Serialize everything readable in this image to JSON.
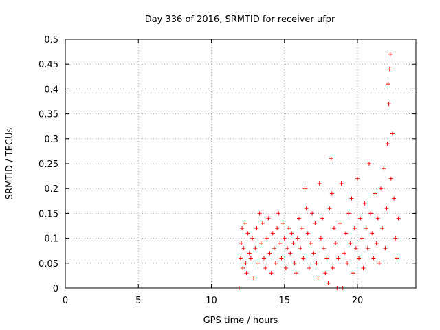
{
  "chart_data": {
    "type": "scatter",
    "title": "Day 336 of 2016, SRMTID for receiver ufpr",
    "xlabel": "GPS time / hours",
    "ylabel": "SRMTID / TECUs",
    "xlim": [
      0,
      24
    ],
    "ylim": [
      0,
      0.5
    ],
    "x_ticks": [
      0,
      5,
      10,
      15,
      20
    ],
    "y_ticks": [
      0,
      0.05,
      0.1,
      0.15,
      0.2,
      0.25,
      0.3,
      0.35,
      0.4,
      0.45,
      0.5
    ],
    "x_tick_labels": [
      "0",
      "5",
      "10",
      "15",
      "20"
    ],
    "y_tick_labels": [
      "0",
      "0.05",
      "0.1",
      "0.15",
      "0.2",
      "0.25",
      "0.3",
      "0.35",
      "0.4",
      "0.45",
      "0.5"
    ],
    "grid": true,
    "marker": "+",
    "marker_color": "#ff0000",
    "series": [
      {
        "points": [
          [
            11.9,
            0.0
          ],
          [
            12.0,
            0.06
          ],
          [
            12.05,
            0.09
          ],
          [
            12.1,
            0.12
          ],
          [
            12.15,
            0.04
          ],
          [
            12.2,
            0.08
          ],
          [
            12.3,
            0.13
          ],
          [
            12.35,
            0.05
          ],
          [
            12.4,
            0.03
          ],
          [
            12.5,
            0.11
          ],
          [
            12.6,
            0.07
          ],
          [
            12.7,
            0.06
          ],
          [
            12.8,
            0.1
          ],
          [
            12.9,
            0.02
          ],
          [
            13.0,
            0.08
          ],
          [
            13.1,
            0.12
          ],
          [
            13.2,
            0.05
          ],
          [
            13.3,
            0.15
          ],
          [
            13.4,
            0.09
          ],
          [
            13.5,
            0.13
          ],
          [
            13.6,
            0.06
          ],
          [
            13.7,
            0.04
          ],
          [
            13.8,
            0.1
          ],
          [
            13.9,
            0.14
          ],
          [
            14.0,
            0.07
          ],
          [
            14.1,
            0.03
          ],
          [
            14.2,
            0.11
          ],
          [
            14.3,
            0.08
          ],
          [
            14.4,
            0.05
          ],
          [
            14.5,
            0.12
          ],
          [
            14.6,
            0.15
          ],
          [
            14.7,
            0.09
          ],
          [
            14.8,
            0.06
          ],
          [
            14.9,
            0.13
          ],
          [
            15.0,
            0.1
          ],
          [
            15.1,
            0.04
          ],
          [
            15.2,
            0.08
          ],
          [
            15.3,
            0.12
          ],
          [
            15.4,
            0.07
          ],
          [
            15.5,
            0.11
          ],
          [
            15.6,
            0.09
          ],
          [
            15.7,
            0.05
          ],
          [
            15.8,
            0.03
          ],
          [
            15.9,
            0.1
          ],
          [
            16.0,
            0.14
          ],
          [
            16.1,
            0.08
          ],
          [
            16.2,
            0.12
          ],
          [
            16.3,
            0.06
          ],
          [
            16.4,
            0.2
          ],
          [
            16.5,
            0.16
          ],
          [
            16.6,
            0.11
          ],
          [
            16.7,
            0.04
          ],
          [
            16.8,
            0.09
          ],
          [
            16.9,
            0.15
          ],
          [
            17.0,
            0.07
          ],
          [
            17.1,
            0.13
          ],
          [
            17.2,
            0.05
          ],
          [
            17.3,
            0.02
          ],
          [
            17.4,
            0.21
          ],
          [
            17.5,
            0.1
          ],
          [
            17.6,
            0.14
          ],
          [
            17.7,
            0.08
          ],
          [
            17.8,
            0.03
          ],
          [
            17.9,
            0.06
          ],
          [
            18.0,
            0.01
          ],
          [
            18.1,
            0.16
          ],
          [
            18.2,
            0.26
          ],
          [
            18.25,
            0.19
          ],
          [
            18.3,
            0.04
          ],
          [
            18.4,
            0.12
          ],
          [
            18.5,
            0.09
          ],
          [
            18.6,
            0.0
          ],
          [
            18.7,
            0.06
          ],
          [
            18.8,
            0.13
          ],
          [
            18.9,
            0.21
          ],
          [
            19.0,
            0.0
          ],
          [
            19.1,
            0.07
          ],
          [
            19.2,
            0.11
          ],
          [
            19.3,
            0.05
          ],
          [
            19.4,
            0.15
          ],
          [
            19.5,
            0.09
          ],
          [
            19.6,
            0.18
          ],
          [
            19.7,
            0.03
          ],
          [
            19.8,
            0.12
          ],
          [
            19.9,
            0.08
          ],
          [
            20.0,
            0.22
          ],
          [
            20.1,
            0.06
          ],
          [
            20.2,
            0.14
          ],
          [
            20.3,
            0.1
          ],
          [
            20.4,
            0.04
          ],
          [
            20.5,
            0.17
          ],
          [
            20.6,
            0.12
          ],
          [
            20.7,
            0.08
          ],
          [
            20.8,
            0.25
          ],
          [
            20.9,
            0.15
          ],
          [
            21.0,
            0.11
          ],
          [
            21.1,
            0.06
          ],
          [
            21.2,
            0.19
          ],
          [
            21.3,
            0.09
          ],
          [
            21.4,
            0.14
          ],
          [
            21.5,
            0.05
          ],
          [
            21.6,
            0.2
          ],
          [
            21.7,
            0.12
          ],
          [
            21.8,
            0.24
          ],
          [
            21.9,
            0.08
          ],
          [
            22.0,
            0.16
          ],
          [
            22.05,
            0.29
          ],
          [
            22.1,
            0.41
          ],
          [
            22.15,
            0.37
          ],
          [
            22.2,
            0.44
          ],
          [
            22.25,
            0.47
          ],
          [
            22.3,
            0.22
          ],
          [
            22.4,
            0.31
          ],
          [
            22.5,
            0.18
          ],
          [
            22.6,
            0.1
          ],
          [
            22.7,
            0.06
          ],
          [
            22.8,
            0.14
          ]
        ]
      }
    ]
  }
}
